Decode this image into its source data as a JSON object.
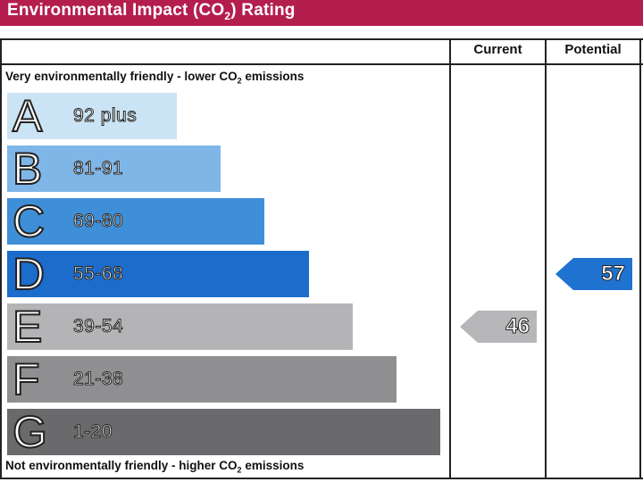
{
  "header": {
    "title_pre": "Environmental Impact (CO",
    "title_sub": "2",
    "title_post": ") Rating"
  },
  "columns": {
    "current": "Current",
    "potential": "Potential"
  },
  "top_note": {
    "pre": "Very environmentally friendly - lower CO",
    "sub": "2",
    "post": " emissions"
  },
  "bottom_note": {
    "pre": "Not environmentally friendly - higher CO",
    "sub": "2",
    "post": " emissions"
  },
  "chart_data": {
    "type": "bar",
    "categories": [
      "A",
      "B",
      "C",
      "D",
      "E",
      "F",
      "G"
    ],
    "ranges": [
      "92 plus",
      "81-91",
      "69-80",
      "55-68",
      "39-54",
      "21-38",
      "1-20"
    ],
    "colors": [
      "#cbe4f5",
      "#7fb6e8",
      "#3f8fd8",
      "#1b6ccb",
      "#b4b4b6",
      "#8f8f91",
      "#6a6a6c"
    ],
    "current": {
      "label": "Current",
      "value": 46,
      "band": "E",
      "color": "#b7b7b9",
      "text_color": "#ffffff"
    },
    "potential": {
      "label": "Potential",
      "value": 57,
      "band": "D",
      "color": "#1f72d0",
      "text_color": "#ffffff"
    }
  }
}
